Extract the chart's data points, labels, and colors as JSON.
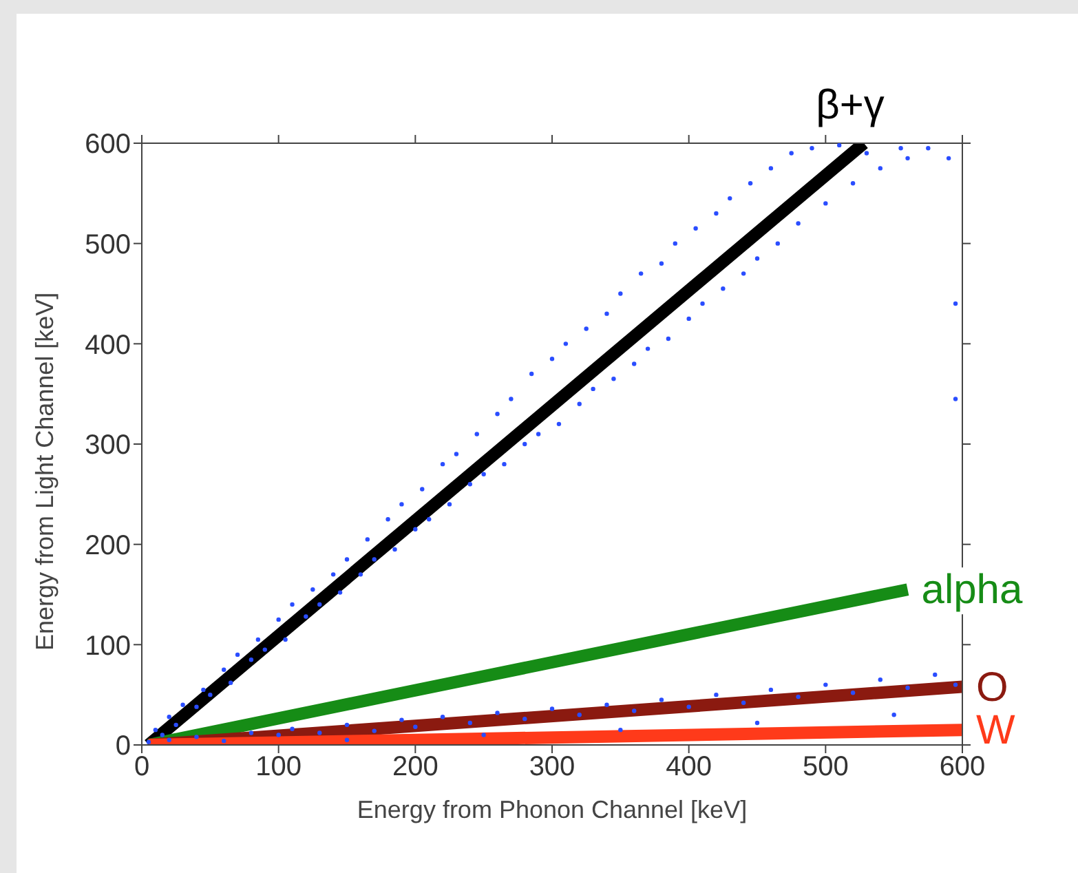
{
  "chart_data": {
    "type": "scatter",
    "xlabel": "Energy from Phonon Channel [keV]",
    "ylabel": "Energy from Light Channel [keV]",
    "xlim": [
      0,
      600
    ],
    "xticks": [
      0,
      100,
      200,
      300,
      400,
      500,
      600
    ],
    "ylim": [
      0,
      600
    ],
    "yticks": [
      0,
      100,
      200,
      300,
      400,
      500,
      600
    ],
    "grid": false,
    "legend": false,
    "series": [
      {
        "marker": "circle",
        "color": "#2a4dff",
        "x": [
          5,
          10,
          15,
          20,
          25,
          30,
          40,
          45,
          50,
          60,
          65,
          70,
          80,
          85,
          90,
          100,
          105,
          110,
          120,
          125,
          130,
          140,
          145,
          150,
          160,
          165,
          170,
          180,
          185,
          190,
          200,
          205,
          210,
          220,
          225,
          230,
          240,
          245,
          250,
          260,
          265,
          270,
          280,
          285,
          290,
          300,
          305,
          310,
          320,
          325,
          330,
          340,
          345,
          350,
          360,
          365,
          370,
          380,
          385,
          390,
          400,
          405,
          410,
          420,
          425,
          430,
          440,
          445,
          450,
          460,
          465,
          475,
          480,
          490,
          500,
          510,
          520,
          530,
          540,
          555,
          560,
          575,
          590,
          595,
          595
        ],
        "values": [
          3,
          15,
          10,
          28,
          20,
          40,
          38,
          55,
          50,
          75,
          62,
          90,
          85,
          105,
          95,
          125,
          105,
          140,
          128,
          155,
          140,
          170,
          152,
          185,
          170,
          205,
          185,
          225,
          195,
          240,
          215,
          255,
          225,
          280,
          240,
          290,
          260,
          310,
          270,
          330,
          280,
          345,
          300,
          370,
          310,
          385,
          320,
          400,
          340,
          415,
          355,
          430,
          365,
          450,
          380,
          470,
          395,
          480,
          405,
          500,
          425,
          515,
          440,
          530,
          455,
          545,
          470,
          560,
          485,
          575,
          500,
          590,
          520,
          595,
          540,
          598,
          560,
          590,
          575,
          595,
          585,
          595,
          585,
          440,
          345
        ]
      },
      {
        "marker": "circle",
        "color": "#2a4dff",
        "x": [
          20,
          40,
          60,
          80,
          100,
          110,
          130,
          150,
          170,
          190,
          200,
          220,
          240,
          260,
          280,
          300,
          320,
          340,
          360,
          380,
          400,
          420,
          440,
          460,
          480,
          500,
          520,
          540,
          560,
          580,
          595,
          150,
          250,
          350,
          450,
          550
        ],
        "values": [
          5,
          8,
          4,
          12,
          10,
          16,
          12,
          20,
          14,
          25,
          18,
          28,
          22,
          32,
          26,
          36,
          30,
          40,
          34,
          45,
          38,
          50,
          42,
          55,
          48,
          60,
          52,
          65,
          57,
          70,
          60,
          5,
          10,
          15,
          22,
          30
        ]
      },
      {
        "type": "line",
        "color": "#000000",
        "x": [
          5,
          528
        ],
        "values": [
          0,
          600
        ]
      },
      {
        "type": "line",
        "color": "#168c16",
        "x": [
          5,
          560
        ],
        "values": [
          0,
          155
        ]
      },
      {
        "type": "line",
        "color": "#8b1a10",
        "x": [
          5,
          600
        ],
        "values": [
          0,
          58
        ]
      },
      {
        "type": "line",
        "color": "#ff3a1a",
        "x": [
          5,
          600
        ],
        "values": [
          0,
          15
        ]
      }
    ],
    "annotations": [
      {
        "text": "β+γ",
        "x": 528,
        "y": 600
      },
      {
        "text": "alpha",
        "x": 560,
        "y": 155
      },
      {
        "text": "O",
        "x": 600,
        "y": 58
      },
      {
        "text": "W",
        "x": 600,
        "y": 15
      }
    ]
  }
}
